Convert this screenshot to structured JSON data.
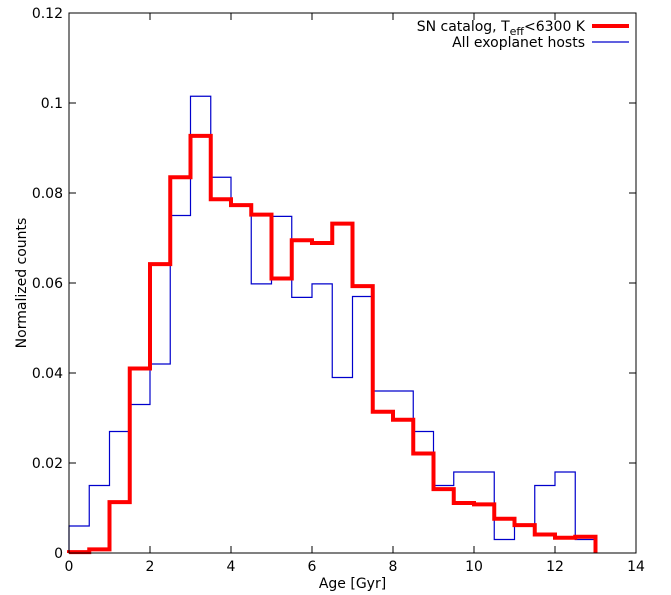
{
  "chart_data": {
    "type": "line",
    "step": true,
    "xlabel": "Age [Gyr]",
    "ylabel": "Normalized counts",
    "xlim": [
      0,
      14
    ],
    "ylim": [
      0,
      0.12
    ],
    "xticks": [
      0,
      2,
      4,
      6,
      8,
      10,
      12,
      14
    ],
    "yticks": [
      0,
      0.02,
      0.04,
      0.06,
      0.08,
      0.1,
      0.12
    ],
    "xtick_labels": [
      "0",
      "2",
      "4",
      "6",
      "8",
      "10",
      "12",
      "14"
    ],
    "ytick_labels": [
      "0",
      "0.02",
      "0.04",
      "0.06",
      "0.08",
      "0.1",
      "0.12"
    ],
    "legend_position": "top-right",
    "bin_edges": [
      0,
      0.5,
      1,
      1.5,
      2,
      2.5,
      3,
      3.5,
      4,
      4.5,
      5,
      5.5,
      6,
      6.5,
      7,
      7.5,
      8,
      8.5,
      9,
      9.5,
      10,
      10.5,
      11,
      11.5,
      12,
      12.5,
      13
    ],
    "series": [
      {
        "name_main": "SN catalog, T",
        "name_sub": "eff",
        "name_tail": "<6300 K",
        "color": "#ff0000",
        "values": [
          0.0002,
          0.0008,
          0.0113,
          0.041,
          0.0642,
          0.0835,
          0.0927,
          0.0786,
          0.0773,
          0.0752,
          0.061,
          0.0695,
          0.0689,
          0.0732,
          0.0593,
          0.0314,
          0.0296,
          0.0221,
          0.0142,
          0.0111,
          0.0108,
          0.0076,
          0.0062,
          0.0041,
          0.0034,
          0.0036
        ]
      },
      {
        "name": "All exoplanet hosts",
        "color": "#0000cc",
        "values": [
          0.006,
          0.015,
          0.027,
          0.033,
          0.042,
          0.075,
          0.1015,
          0.0835,
          0.0775,
          0.0598,
          0.0748,
          0.0568,
          0.0598,
          0.039,
          0.057,
          0.036,
          0.036,
          0.027,
          0.015,
          0.018,
          0.018,
          0.003,
          0.006,
          0.015,
          0.018,
          0.003
        ]
      }
    ]
  }
}
